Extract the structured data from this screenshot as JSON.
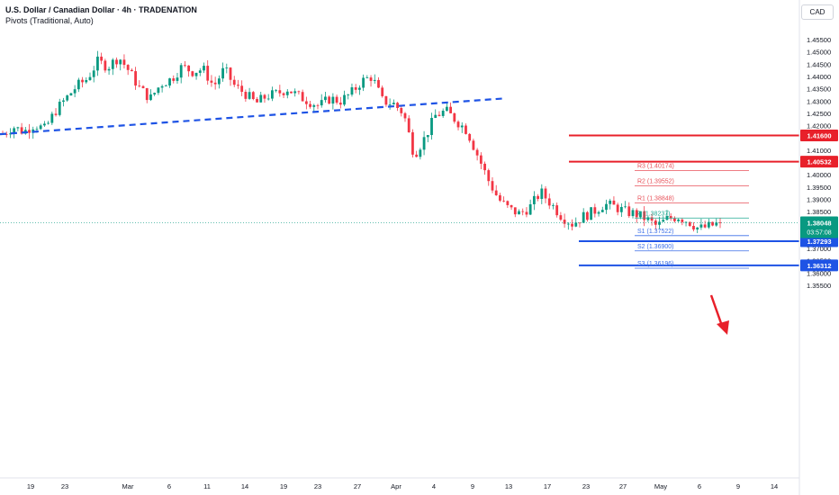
{
  "header": {
    "title": "U.S. Dollar / Canadian Dollar · 4h · TRADENATION",
    "indicator": "Pivots (Traditional, Auto)",
    "currency": "CAD"
  },
  "chart_data": {
    "type": "candlestick",
    "symbol": "USDCAD",
    "timeframe": "4h",
    "y_range": [
      1.3525,
      1.458
    ],
    "y_ticks": [
      "1.45500",
      "1.45000",
      "1.44500",
      "1.44000",
      "1.43500",
      "1.43000",
      "1.42500",
      "1.42000",
      "1.41500",
      "1.41000",
      "1.40500",
      "1.40000",
      "1.39500",
      "1.39000",
      "1.38500",
      "1.38000",
      "1.37500",
      "1.37000",
      "1.36500",
      "1.36000",
      "1.35500"
    ],
    "y_tick_values": [
      1.455,
      1.45,
      1.445,
      1.44,
      1.435,
      1.43,
      1.425,
      1.42,
      1.415,
      1.41,
      1.405,
      1.4,
      1.395,
      1.39,
      1.385,
      1.38,
      1.375,
      1.37,
      1.365,
      1.36,
      1.355
    ],
    "x_ticks": [
      "19",
      "23",
      "Mar",
      "6",
      "11",
      "14",
      "19",
      "23",
      "27",
      "Apr",
      "4",
      "9",
      "13",
      "17",
      "23",
      "27",
      "May",
      "6",
      "9",
      "14"
    ],
    "close_path": [
      1.4165,
      1.4195,
      1.4175,
      1.4205,
      1.4185,
      1.426,
      1.431,
      1.436,
      1.439,
      1.446,
      1.444,
      1.448,
      1.442,
      1.435,
      1.431,
      1.437,
      1.439,
      1.444,
      1.442,
      1.443,
      1.436,
      1.443,
      1.436,
      1.433,
      1.429,
      1.432,
      1.433,
      1.435,
      1.432,
      1.43,
      1.428,
      1.431,
      1.43,
      1.433,
      1.438,
      1.44,
      1.43,
      1.429,
      1.425,
      1.408,
      1.415,
      1.424,
      1.426,
      1.422,
      1.418,
      1.408,
      1.398,
      1.39,
      1.386,
      1.384,
      1.387,
      1.393,
      1.388,
      1.383,
      1.38,
      1.383,
      1.385,
      1.388,
      1.387,
      1.385,
      1.384,
      1.382,
      1.379,
      1.382,
      1.383,
      1.381,
      1.378,
      1.379,
      1.38048
    ],
    "trendline": {
      "from": [
        1.4165
      ],
      "to": [
        1.431
      ],
      "style": "dashed",
      "color": "#1e53e5"
    },
    "resistance_lines": [
      {
        "value": 1.416,
        "label": "1.41600",
        "color": "#e8202a"
      },
      {
        "value": 1.40532,
        "label": "1.40532",
        "color": "#e8202a"
      }
    ],
    "support_lines": [
      {
        "value": 1.37293,
        "label": "1.37293",
        "color": "#1e53e5"
      },
      {
        "value": 1.36312,
        "label": "1.36312",
        "color": "#1e53e5"
      }
    ],
    "pivots": [
      {
        "label": "R3 (1.40174)",
        "value": 1.40174,
        "color": "#e8525a"
      },
      {
        "label": "R2 (1.39552)",
        "value": 1.39552,
        "color": "#e8525a"
      },
      {
        "label": "R1 (1.38848)",
        "value": 1.38848,
        "color": "#e8525a"
      },
      {
        "label": "P (1.38237)",
        "value": 1.38237,
        "color": "#22ab94"
      },
      {
        "label": "S1 (1.37522)",
        "value": 1.37522,
        "color": "#3a6ee8"
      },
      {
        "label": "S2 (1.36900)",
        "value": 1.369,
        "color": "#3a6ee8"
      },
      {
        "label": "S3 (1.36196)",
        "value": 1.36196,
        "color": "#3a6ee8"
      }
    ],
    "last_price": {
      "value": 1.38048,
      "label": "1.38048",
      "countdown": "03:57:08",
      "color": "#089981"
    },
    "up_color": "#089981",
    "down_color": "#f23645",
    "arrow": {
      "color": "#e8202a",
      "direction": "down"
    }
  }
}
